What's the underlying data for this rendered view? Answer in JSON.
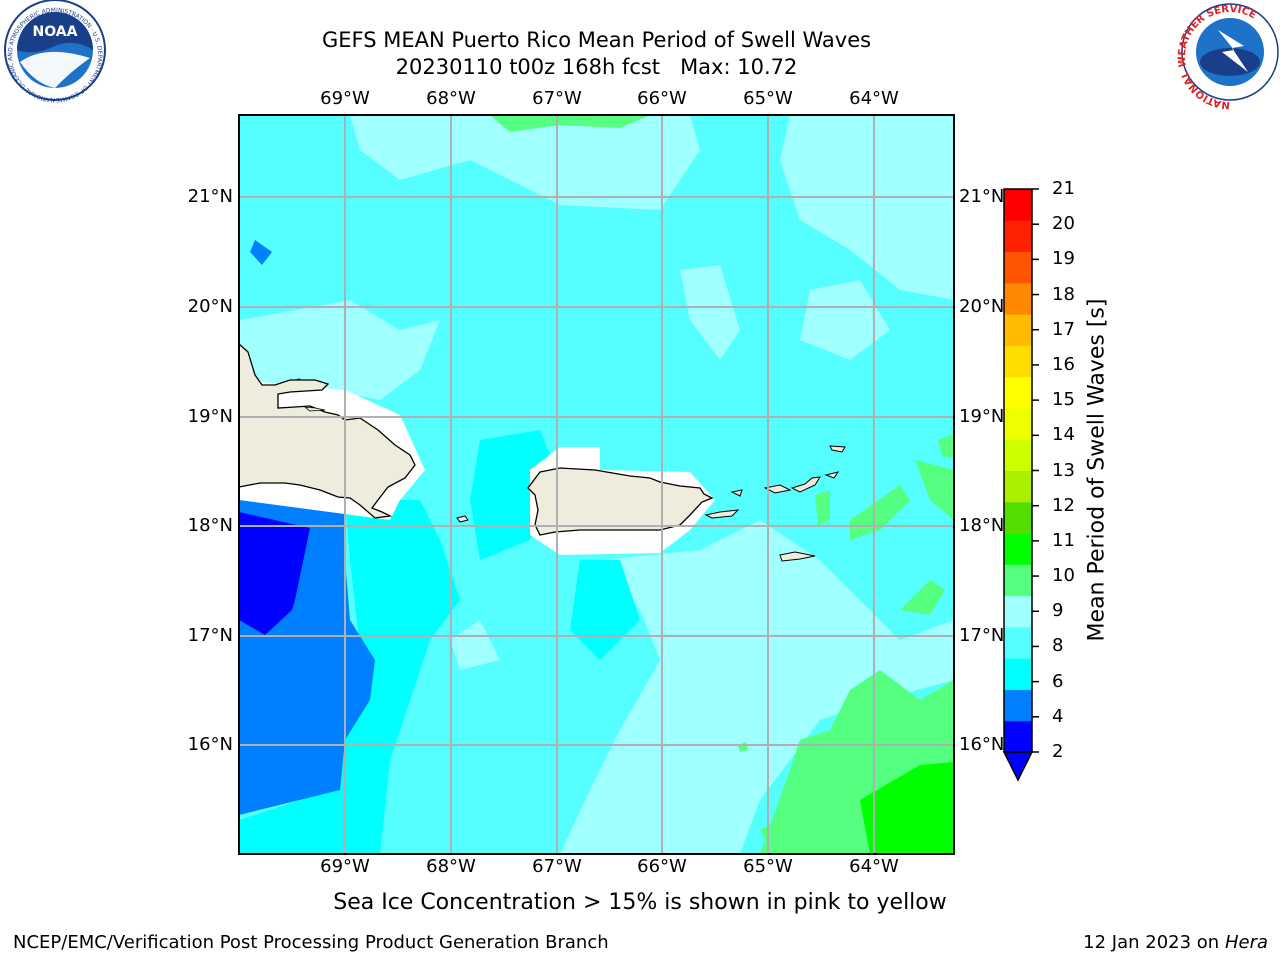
{
  "title": {
    "line1": "GEFS MEAN Puerto Rico Mean Period of Swell Waves",
    "line2": "20230110 t00z 168h fcst   Max: 10.72"
  },
  "axes": {
    "lon_labels": [
      "69°W",
      "68°W",
      "67°W",
      "66°W",
      "65°W",
      "64°W"
    ],
    "lat_labels": [
      "21°N",
      "20°N",
      "19°N",
      "18°N",
      "17°N",
      "16°N"
    ]
  },
  "colorbar": {
    "title": "Mean Period of Swell Waves [s]",
    "ticks": [
      "2",
      "4",
      "6",
      "8",
      "9",
      "10",
      "11",
      "12",
      "13",
      "14",
      "15",
      "16",
      "17",
      "18",
      "19",
      "20",
      "21"
    ],
    "colors": [
      "#0000ff",
      "#0080ff",
      "#00ffff",
      "#55ffff",
      "#a0ffff",
      "#55ff80",
      "#00ff00",
      "#55dd00",
      "#aaee00",
      "#ccff00",
      "#eeff00",
      "#ffff00",
      "#ffdd00",
      "#ffbb00",
      "#ff8800",
      "#ff5500",
      "#ff2200",
      "#ff0000"
    ],
    "under_color": "#0000ff"
  },
  "note": "Sea Ice Concentration > 15% is shown in pink to yellow",
  "footer": {
    "left": "NCEP/EMC/Verification Post Processing Product Generation Branch",
    "right_date": "12 Jan 2023 on",
    "right_machine": "Hera"
  },
  "logos": {
    "noaa_text": "NOAA",
    "noaa_ring": "NATIONAL OCEANIC AND ATMOSPHERIC ADMINISTRATION · U.S. DEPARTMENT OF COMMERCE",
    "nws_ring": "NATIONAL WEATHER SERVICE"
  },
  "map_colors": {
    "base": "#55ffff",
    "light": "#a0ffff",
    "cyan": "#00ffff",
    "mid_blue": "#0080ff",
    "deep_blue": "#0000ff",
    "green_light": "#55ff80",
    "green": "#00ff00",
    "land": "#eeecdc",
    "grid": "#b0b0b0"
  }
}
